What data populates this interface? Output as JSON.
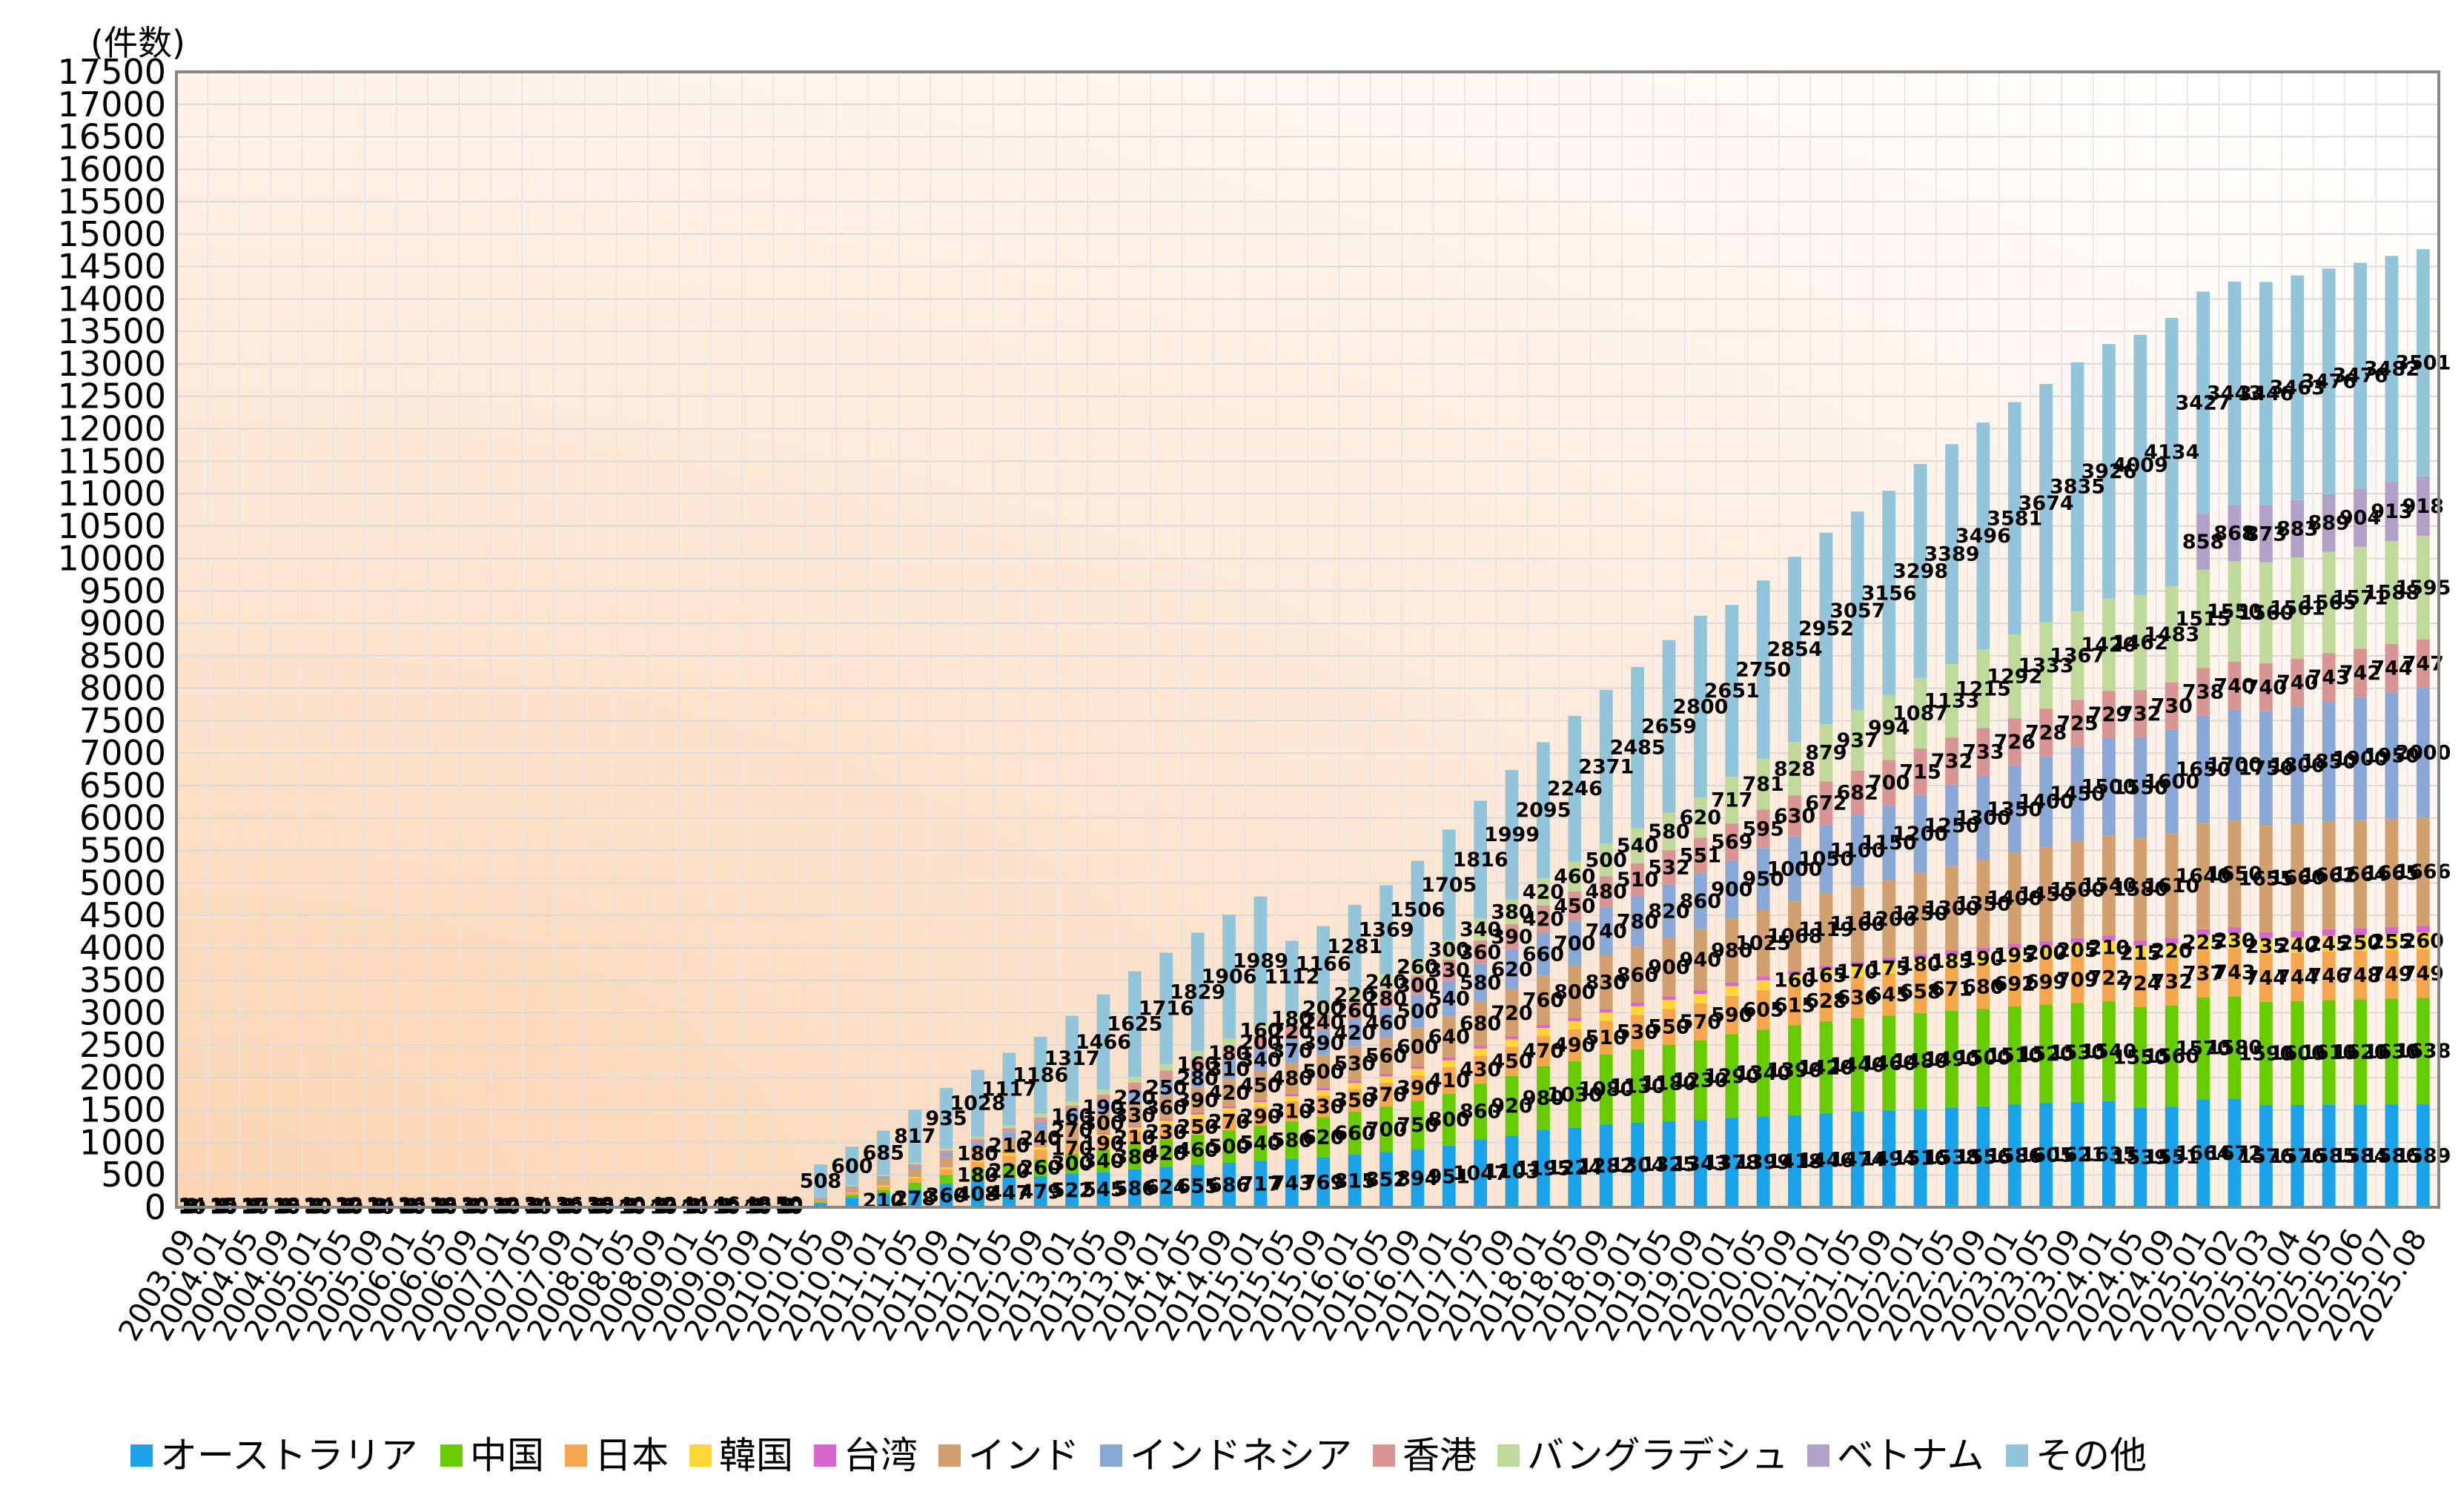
{
  "chart_data": {
    "type": "bar",
    "stacked": true,
    "unit_label": "(件数)",
    "title": "",
    "xlabel": "",
    "ylabel": "",
    "ylim": [
      0,
      17500
    ],
    "y_ticks": [
      0,
      500,
      1000,
      1500,
      2000,
      2500,
      3000,
      3500,
      4000,
      4500,
      5000,
      5500,
      6000,
      6500,
      7000,
      7500,
      8000,
      8500,
      9000,
      9500,
      10000,
      10500,
      11000,
      11500,
      12000,
      12500,
      13000,
      13500,
      14000,
      14500,
      15000,
      15500,
      16000,
      16500,
      17000,
      17500
    ],
    "grid": true,
    "legend_position": "bottom",
    "categories": [
      "2003.09",
      "2004.01",
      "2004.05",
      "2004.09",
      "2005.01",
      "2005.05",
      "2005.09",
      "2006.01",
      "2006.05",
      "2006.09",
      "2007.01",
      "2007.05",
      "2007.09",
      "2008.01",
      "2008.05",
      "2008.09",
      "2009.01",
      "2009.05",
      "2009.09",
      "2010.01",
      "2010.05",
      "2010.09",
      "2011.01",
      "2011.05",
      "2011.09",
      "2012.01",
      "2012.05",
      "2012.09",
      "2013.01",
      "2013.05",
      "2013.09",
      "2014.01",
      "2014.05",
      "2014.09",
      "2015.01",
      "2015.05",
      "2015.09",
      "2016.01",
      "2016.05",
      "2016.09",
      "2017.01",
      "2017.05",
      "2017.09",
      "2018.01",
      "2018.05",
      "2018.09",
      "2019.01",
      "2019.05",
      "2019.09",
      "2020.01",
      "2020.05",
      "2020.09",
      "2021.01",
      "2021.05",
      "2021.09",
      "2022.01",
      "2022.05",
      "2022.09",
      "2023.01",
      "2023.05",
      "2023.09",
      "2024.01",
      "2024.05",
      "2024.09",
      "2025.01",
      "2025.02",
      "2025.03",
      "2025.04",
      "2025.05",
      "2025.06",
      "2025.07",
      "2025.08"
    ],
    "x_tick_labels": [
      "2003.09",
      "2004.01",
      "2004.05",
      "2004.09",
      "2005.01",
      "2005.05",
      "2005.09",
      "2006.01",
      "2006.05",
      "2006.09",
      "2007.01",
      "2007.05",
      "2007.09",
      "2008.01",
      "2008.05",
      "2008.09",
      "2009.01",
      "2009.05",
      "2009.09",
      "2010.01",
      "2010.05",
      "2010.09",
      "2011.01",
      "2011.05",
      "2011.09",
      "2012.01",
      "2012.05",
      "2012.09",
      "2013.01",
      "2013.05",
      "2013.09",
      "2014.01",
      "2014.05",
      "2014.09",
      "2015.01",
      "2015.05",
      "2015.09",
      "2016.01",
      "2016.05",
      "2016.09",
      "2017.01",
      "2017.05",
      "2017.09",
      "2018.01",
      "2018.05",
      "2018.09",
      "2019.01",
      "2019.05",
      "2019.09",
      "2020.01",
      "2020.05",
      "2020.09",
      "2021.01",
      "2021.05",
      "2021.09",
      "2022.01",
      "2022.05",
      "2022.09",
      "2023.01",
      "2023.05",
      "2023.09",
      "2024.01",
      "2024.05",
      "2024.09",
      "2025.01",
      "2025.02",
      "2025.03",
      "2025.04",
      "2025.05",
      "2025.06",
      "2025.07",
      "2025.08"
    ],
    "series": [
      {
        "name": "オーストラリア",
        "color": "#1aa3e8",
        "values": [
          10,
          10,
          10,
          10,
          10,
          10,
          10,
          10,
          10,
          10,
          10,
          10,
          10,
          10,
          10,
          10,
          10,
          10,
          10,
          10,
          62,
          150,
          210,
          278,
          360,
          408,
          447,
          479,
          522,
          545,
          586,
          624,
          655,
          686,
          717,
          743,
          769,
          815,
          852,
          894,
          951,
          1047,
          1103,
          1195,
          1224,
          1282,
          1304,
          1325,
          1343,
          1378,
          1399,
          1418,
          1446,
          1474,
          1494,
          1516,
          1538,
          1556,
          1586,
          1605,
          1621,
          1635,
          1539,
          1551,
          1664,
          1672,
          1576,
          1576,
          1585,
          1584,
          1586,
          1589
        ]
      },
      {
        "name": "中国",
        "color": "#66cc00",
        "values": [
          5,
          5,
          5,
          5,
          5,
          5,
          5,
          5,
          5,
          5,
          5,
          5,
          5,
          5,
          5,
          5,
          5,
          5,
          5,
          5,
          20,
          40,
          60,
          100,
          140,
          180,
          220,
          260,
          300,
          340,
          380,
          420,
          460,
          500,
          540,
          580,
          620,
          660,
          700,
          750,
          800,
          860,
          920,
          980,
          1030,
          1080,
          1130,
          1180,
          1230,
          1290,
          1340,
          1390,
          1420,
          1440,
          1460,
          1480,
          1490,
          1500,
          1510,
          1520,
          1530,
          1540,
          1550,
          1560,
          1570,
          1580,
          1590,
          1600,
          1610,
          1620,
          1630,
          1638
        ]
      },
      {
        "name": "日本",
        "color": "#f6a64c",
        "values": [
          3,
          3,
          3,
          3,
          3,
          3,
          3,
          3,
          3,
          3,
          3,
          3,
          3,
          3,
          3,
          3,
          3,
          3,
          3,
          3,
          15,
          30,
          50,
          70,
          90,
          110,
          130,
          150,
          170,
          190,
          210,
          230,
          250,
          270,
          290,
          310,
          330,
          350,
          370,
          390,
          410,
          430,
          450,
          470,
          490,
          510,
          530,
          550,
          570,
          590,
          605,
          615,
          628,
          636,
          645,
          658,
          671,
          680,
          692,
          699,
          709,
          722,
          724,
          732,
          737,
          743,
          744,
          744,
          746,
          748,
          749,
          749
        ]
      },
      {
        "name": "韓国",
        "color": "#ffd633",
        "values": [
          1,
          1,
          1,
          1,
          1,
          1,
          1,
          1,
          1,
          1,
          1,
          1,
          1,
          1,
          1,
          1,
          1,
          1,
          1,
          1,
          5,
          10,
          15,
          20,
          25,
          30,
          35,
          40,
          45,
          50,
          55,
          60,
          65,
          70,
          75,
          80,
          85,
          90,
          95,
          100,
          105,
          110,
          115,
          120,
          125,
          130,
          135,
          140,
          145,
          150,
          155,
          160,
          165,
          170,
          175,
          180,
          185,
          190,
          195,
          200,
          205,
          210,
          215,
          220,
          225,
          230,
          235,
          240,
          245,
          250,
          255,
          260
        ]
      },
      {
        "name": "台湾",
        "color": "#d966cc",
        "values": [
          0,
          0,
          0,
          0,
          0,
          0,
          0,
          0,
          0,
          0,
          0,
          0,
          0,
          0,
          0,
          0,
          0,
          0,
          0,
          0,
          2,
          4,
          6,
          8,
          10,
          12,
          14,
          16,
          18,
          20,
          22,
          24,
          26,
          28,
          30,
          32,
          34,
          36,
          38,
          40,
          42,
          44,
          46,
          48,
          50,
          52,
          54,
          56,
          58,
          60,
          62,
          64,
          66,
          68,
          70,
          72,
          74,
          76,
          78,
          80,
          82,
          84,
          86,
          88,
          90,
          92,
          94,
          96,
          98,
          100,
          102,
          104
        ]
      },
      {
        "name": "インド",
        "color": "#d2a06e",
        "values": [
          2,
          2,
          2,
          2,
          2,
          2,
          2,
          2,
          2,
          2,
          2,
          2,
          2,
          2,
          2,
          2,
          2,
          2,
          2,
          2,
          30,
          60,
          90,
          120,
          150,
          180,
          210,
          240,
          270,
          300,
          330,
          360,
          390,
          420,
          450,
          480,
          500,
          530,
          560,
          600,
          640,
          680,
          720,
          760,
          800,
          830,
          860,
          900,
          940,
          980,
          1025,
          1068,
          1119,
          1160,
          1200,
          1250,
          1300,
          1350,
          1400,
          1450,
          1500,
          1540,
          1580,
          1610,
          1640,
          1650,
          1655,
          1660,
          1662,
          1664,
          1665,
          1666
        ]
      },
      {
        "name": "インドネシア",
        "color": "#8aa8d6",
        "values": [
          0,
          0,
          0,
          0,
          0,
          0,
          0,
          0,
          0,
          0,
          0,
          0,
          0,
          0,
          0,
          0,
          0,
          0,
          0,
          0,
          10,
          20,
          30,
          40,
          60,
          80,
          100,
          130,
          160,
          190,
          220,
          250,
          280,
          310,
          340,
          370,
          390,
          420,
          460,
          500,
          540,
          580,
          620,
          660,
          700,
          740,
          780,
          820,
          860,
          900,
          950,
          1000,
          1050,
          1100,
          1150,
          1200,
          1250,
          1300,
          1350,
          1400,
          1450,
          1500,
          1550,
          1600,
          1650,
          1700,
          1750,
          1800,
          1850,
          1900,
          1950,
          2000
        ]
      },
      {
        "name": "香港",
        "color": "#d99494",
        "values": [
          0,
          0,
          0,
          0,
          0,
          0,
          0,
          0,
          0,
          0,
          0,
          0,
          0,
          0,
          0,
          0,
          0,
          0,
          0,
          0,
          5,
          10,
          20,
          30,
          40,
          50,
          60,
          70,
          80,
          100,
          120,
          140,
          160,
          180,
          200,
          220,
          240,
          260,
          280,
          300,
          330,
          360,
          390,
          420,
          450,
          480,
          510,
          532,
          551,
          569,
          595,
          630,
          672,
          682,
          700,
          715,
          732,
          733,
          726,
          728,
          725,
          729,
          732,
          730,
          738,
          740,
          740,
          740,
          743,
          742,
          744,
          747
        ]
      },
      {
        "name": "バングラデシュ",
        "color": "#bfd99a",
        "values": [
          0,
          0,
          0,
          0,
          0,
          0,
          0,
          0,
          0,
          0,
          0,
          0,
          0,
          0,
          0,
          0,
          0,
          0,
          0,
          0,
          5,
          10,
          15,
          20,
          30,
          40,
          50,
          60,
          70,
          80,
          90,
          100,
          120,
          140,
          160,
          180,
          200,
          220,
          240,
          260,
          300,
          340,
          380,
          420,
          460,
          500,
          540,
          580,
          620,
          717,
          781,
          828,
          879,
          937,
          994,
          1087,
          1133,
          1215,
          1292,
          1333,
          1367,
          1420,
          1462,
          1483,
          1515,
          1550,
          1560,
          1561,
          1565,
          1571,
          1588,
          1595
        ]
      },
      {
        "name": "ベトナム",
        "color": "#b3a0c8",
        "values": [
          0,
          0,
          0,
          0,
          0,
          0,
          0,
          0,
          0,
          0,
          0,
          0,
          0,
          0,
          0,
          0,
          0,
          0,
          0,
          0,
          0,
          0,
          0,
          0,
          0,
          0,
          0,
          0,
          0,
          0,
          0,
          0,
          0,
          0,
          0,
          0,
          0,
          0,
          0,
          0,
          0,
          0,
          0,
          0,
          0,
          0,
          0,
          0,
          0,
          0,
          0,
          0,
          0,
          0,
          0,
          0,
          0,
          0,
          0,
          0,
          0,
          0,
          0,
          0,
          858,
          868,
          873,
          883,
          889,
          904,
          913,
          918
        ]
      },
      {
        "name": "その他",
        "color": "#92c5d9",
        "values": [
          14,
          15,
          17,
          18,
          20,
          22,
          24,
          26,
          28,
          30,
          32,
          34,
          36,
          38,
          40,
          42,
          44,
          46,
          48,
          50,
          508,
          600,
          685,
          817,
          935,
          1028,
          1117,
          1186,
          1317,
          1466,
          1625,
          1716,
          1829,
          1906,
          1989,
          1112,
          1166,
          1281,
          1369,
          1506,
          1705,
          1816,
          1999,
          2095,
          2246,
          2371,
          2485,
          2659,
          2800,
          2651,
          2750,
          2854,
          2952,
          3057,
          3156,
          3298,
          3389,
          3496,
          3581,
          3674,
          3835,
          3926,
          4009,
          4134,
          3427,
          3443,
          3446,
          3463,
          3476,
          3476,
          3482,
          3501
        ]
      }
    ]
  }
}
